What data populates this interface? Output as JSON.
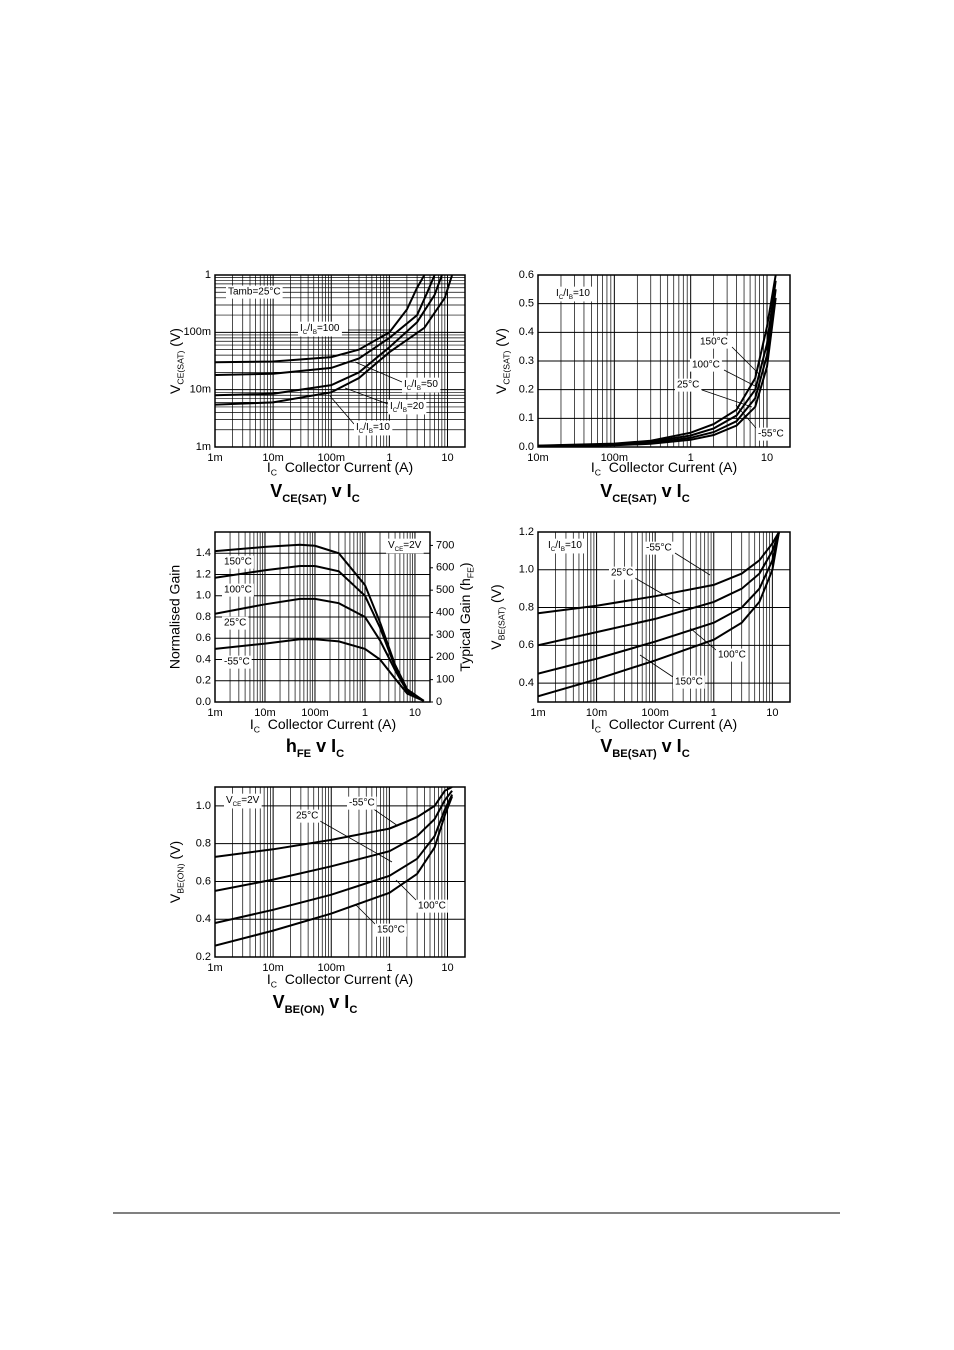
{
  "chart_data": [
    {
      "type": "line",
      "title": [
        "V",
        "CE(SAT)",
        " v I",
        "C"
      ],
      "xlabel": [
        "I",
        "C",
        "  Collector Current (A)"
      ],
      "ylabel": [
        "V",
        "CE(SAT)",
        " (V)"
      ],
      "xscale": "log",
      "yscale": "log",
      "xlim": [
        0.001,
        20
      ],
      "ylim": [
        0.001,
        1
      ],
      "xticks": [
        {
          "value": 0.001,
          "label": "1m"
        },
        {
          "value": 0.01,
          "label": "10m"
        },
        {
          "value": 0.1,
          "label": "100m"
        },
        1,
        10
      ],
      "yticks": [
        {
          "value": 0.001,
          "label": "1m"
        },
        {
          "value": 0.01,
          "label": "10m"
        },
        {
          "value": 0.1,
          "label": "100m"
        },
        1
      ],
      "grid": true,
      "annotations": [
        "Tamb=25°C"
      ],
      "series": [
        {
          "name": [
            "I",
            "C",
            "/I",
            "B",
            "=100"
          ],
          "color": "#000000",
          "x": [
            0.001,
            0.01,
            0.1,
            0.3,
            1,
            2,
            3,
            4
          ],
          "values": [
            0.03,
            0.031,
            0.037,
            0.05,
            0.1,
            0.25,
            0.6,
            1
          ]
        },
        {
          "name": [
            "I",
            "C",
            "/I",
            "B",
            "=50"
          ],
          "color": "#000000",
          "x": [
            0.001,
            0.01,
            0.1,
            0.3,
            1,
            3,
            4.5,
            6
          ],
          "values": [
            0.018,
            0.019,
            0.024,
            0.035,
            0.08,
            0.2,
            0.5,
            1
          ]
        },
        {
          "name": [
            "I",
            "C",
            "/I",
            "B",
            "=20"
          ],
          "color": "#000000",
          "x": [
            0.001,
            0.01,
            0.1,
            0.3,
            1,
            3,
            6,
            8
          ],
          "values": [
            0.008,
            0.0085,
            0.012,
            0.02,
            0.055,
            0.15,
            0.45,
            1
          ]
        },
        {
          "name": [
            "I",
            "C",
            "/I",
            "B",
            "=10"
          ],
          "color": "#000000",
          "x": [
            0.001,
            0.01,
            0.1,
            0.3,
            1,
            4,
            9,
            12
          ],
          "values": [
            0.0055,
            0.006,
            0.009,
            0.016,
            0.045,
            0.12,
            0.4,
            1
          ]
        }
      ]
    },
    {
      "type": "line",
      "title": [
        "V",
        "CE(SAT)",
        " v I",
        "C"
      ],
      "xlabel": [
        "I",
        "C",
        "  Collector Current (A)"
      ],
      "ylabel": [
        "V",
        "CE(SAT)",
        " (V)"
      ],
      "xscale": "log",
      "yscale": "linear",
      "xlim": [
        0.01,
        20
      ],
      "ylim": [
        0,
        0.6
      ],
      "xticks": [
        {
          "value": 0.01,
          "label": "10m"
        },
        {
          "value": 0.1,
          "label": "100m"
        },
        1,
        10
      ],
      "yticks": [
        {
          "value": 0,
          "label": "0.0"
        },
        0.1,
        0.2,
        0.3,
        0.4,
        0.5,
        0.6
      ],
      "grid": true,
      "annotations": [
        [
          "I",
          "C",
          "/I",
          "B",
          "=10"
        ]
      ],
      "x": [
        0.01,
        0.1,
        0.3,
        1,
        2,
        4,
        7,
        10,
        13
      ],
      "series": [
        {
          "name": "150°C",
          "color": "#000000",
          "values": [
            0.005,
            0.012,
            0.022,
            0.05,
            0.08,
            0.13,
            0.24,
            0.42,
            0.6
          ]
        },
        {
          "name": "100°C",
          "color": "#000000",
          "values": [
            0.004,
            0.01,
            0.018,
            0.04,
            0.065,
            0.11,
            0.2,
            0.36,
            0.58
          ]
        },
        {
          "name": "25°C",
          "color": "#000000",
          "values": [
            0.003,
            0.008,
            0.014,
            0.032,
            0.052,
            0.09,
            0.17,
            0.32,
            0.55
          ]
        },
        {
          "name": "-55°C",
          "color": "#000000",
          "values": [
            0.002,
            0.006,
            0.011,
            0.025,
            0.042,
            0.075,
            0.14,
            0.28,
            0.52
          ]
        }
      ]
    },
    {
      "type": "line",
      "title": [
        "h",
        "FE",
        " v I",
        "C"
      ],
      "xlabel": [
        "I",
        "C",
        "  Collector Current (A)"
      ],
      "ylabel": "Normalised Gain",
      "y2label": [
        "Typical Gain (h",
        "FE",
        ")"
      ],
      "xscale": "log",
      "yscale": "linear",
      "xlim": [
        0.001,
        20
      ],
      "ylim": [
        0,
        1.6
      ],
      "y2lim": [
        0,
        760
      ],
      "xticks": [
        {
          "value": 0.001,
          "label": "1m"
        },
        {
          "value": 0.01,
          "label": "10m"
        },
        {
          "value": 0.1,
          "label": "100m"
        },
        1,
        10
      ],
      "yticks": [
        {
          "value": 0,
          "label": "0.0"
        },
        0.2,
        0.4,
        0.6,
        0.8,
        {
          "value": 1,
          "label": "1.0"
        },
        1.2,
        1.4
      ],
      "y2ticks": [
        0,
        100,
        200,
        300,
        400,
        500,
        600,
        700
      ],
      "grid": true,
      "annotations": [
        [
          "V",
          "CE",
          "=2V"
        ]
      ],
      "x": [
        0.001,
        0.01,
        0.05,
        0.1,
        0.3,
        1,
        2,
        4,
        7,
        15
      ],
      "series": [
        {
          "name": "150°C",
          "color": "#000000",
          "values": [
            1.42,
            1.46,
            1.48,
            1.47,
            1.4,
            1.1,
            0.75,
            0.35,
            0.12,
            0.01
          ]
        },
        {
          "name": "100°C",
          "color": "#000000",
          "values": [
            1.17,
            1.24,
            1.28,
            1.28,
            1.23,
            1.0,
            0.7,
            0.33,
            0.11,
            0.01
          ]
        },
        {
          "name": "25°C",
          "color": "#000000",
          "values": [
            0.83,
            0.92,
            0.97,
            0.97,
            0.93,
            0.8,
            0.58,
            0.3,
            0.1,
            0.01
          ]
        },
        {
          "name": "-55°C",
          "color": "#000000",
          "values": [
            0.5,
            0.55,
            0.59,
            0.59,
            0.57,
            0.5,
            0.4,
            0.22,
            0.08,
            0.01
          ]
        }
      ]
    },
    {
      "type": "line",
      "title": [
        "V",
        "BE(SAT)",
        " v I",
        "C"
      ],
      "xlabel": [
        "I",
        "C",
        "  Collector Current (A)"
      ],
      "ylabel": [
        "V",
        "BE(SAT)",
        " (V)"
      ],
      "xscale": "log",
      "yscale": "linear",
      "xlim": [
        0.001,
        20
      ],
      "ylim": [
        0.3,
        1.2
      ],
      "xticks": [
        {
          "value": 0.001,
          "label": "1m"
        },
        {
          "value": 0.01,
          "label": "10m"
        },
        {
          "value": 0.1,
          "label": "100m"
        },
        1,
        10
      ],
      "yticks": [
        0.4,
        0.6,
        0.8,
        {
          "value": 1,
          "label": "1.0"
        },
        1.2
      ],
      "grid": true,
      "annotations": [
        [
          "I",
          "C",
          "/I",
          "B",
          "=10"
        ]
      ],
      "x": [
        0.001,
        0.01,
        0.1,
        1,
        3,
        6,
        10,
        13
      ],
      "series": [
        {
          "name": "-55°C",
          "color": "#000000",
          "values": [
            0.77,
            0.81,
            0.86,
            0.92,
            0.98,
            1.05,
            1.14,
            1.2
          ]
        },
        {
          "name": "25°C",
          "color": "#000000",
          "values": [
            0.6,
            0.67,
            0.74,
            0.83,
            0.9,
            0.98,
            1.1,
            1.2
          ]
        },
        {
          "name": "100°C",
          "color": "#000000",
          "values": [
            0.45,
            0.53,
            0.62,
            0.72,
            0.8,
            0.9,
            1.05,
            1.2
          ]
        },
        {
          "name": "150°C",
          "color": "#000000",
          "values": [
            0.33,
            0.42,
            0.52,
            0.63,
            0.72,
            0.83,
            1.0,
            1.2
          ]
        }
      ]
    },
    {
      "type": "line",
      "title": [
        "V",
        "BE(ON)",
        " v I",
        "C"
      ],
      "xlabel": [
        "I",
        "C",
        "  Collector Current (A)"
      ],
      "ylabel": [
        "V",
        "BE(ON)",
        " (V)"
      ],
      "xscale": "log",
      "yscale": "linear",
      "xlim": [
        0.001,
        20
      ],
      "ylim": [
        0.2,
        1.1
      ],
      "xticks": [
        {
          "value": 0.001,
          "label": "1m"
        },
        {
          "value": 0.01,
          "label": "10m"
        },
        {
          "value": 0.1,
          "label": "100m"
        },
        1,
        10
      ],
      "yticks": [
        0.2,
        0.4,
        0.6,
        0.8,
        {
          "value": 1,
          "label": "1.0"
        }
      ],
      "grid": true,
      "annotations": [
        [
          "V",
          "CE",
          "=2V"
        ]
      ],
      "x": [
        0.001,
        0.01,
        0.1,
        1,
        3,
        6,
        9,
        12
      ],
      "series": [
        {
          "name": "-55°C",
          "color": "#000000",
          "values": [
            0.73,
            0.77,
            0.82,
            0.88,
            0.94,
            1.0,
            1.08,
            1.1
          ]
        },
        {
          "name": "25°C",
          "color": "#000000",
          "values": [
            0.55,
            0.61,
            0.68,
            0.76,
            0.84,
            0.93,
            1.03,
            1.08
          ]
        },
        {
          "name": "100°C",
          "color": "#000000",
          "values": [
            0.38,
            0.45,
            0.53,
            0.63,
            0.72,
            0.84,
            0.98,
            1.06
          ]
        },
        {
          "name": "150°C",
          "color": "#000000",
          "values": [
            0.26,
            0.34,
            0.43,
            0.54,
            0.64,
            0.78,
            0.95,
            1.05
          ]
        }
      ]
    }
  ]
}
